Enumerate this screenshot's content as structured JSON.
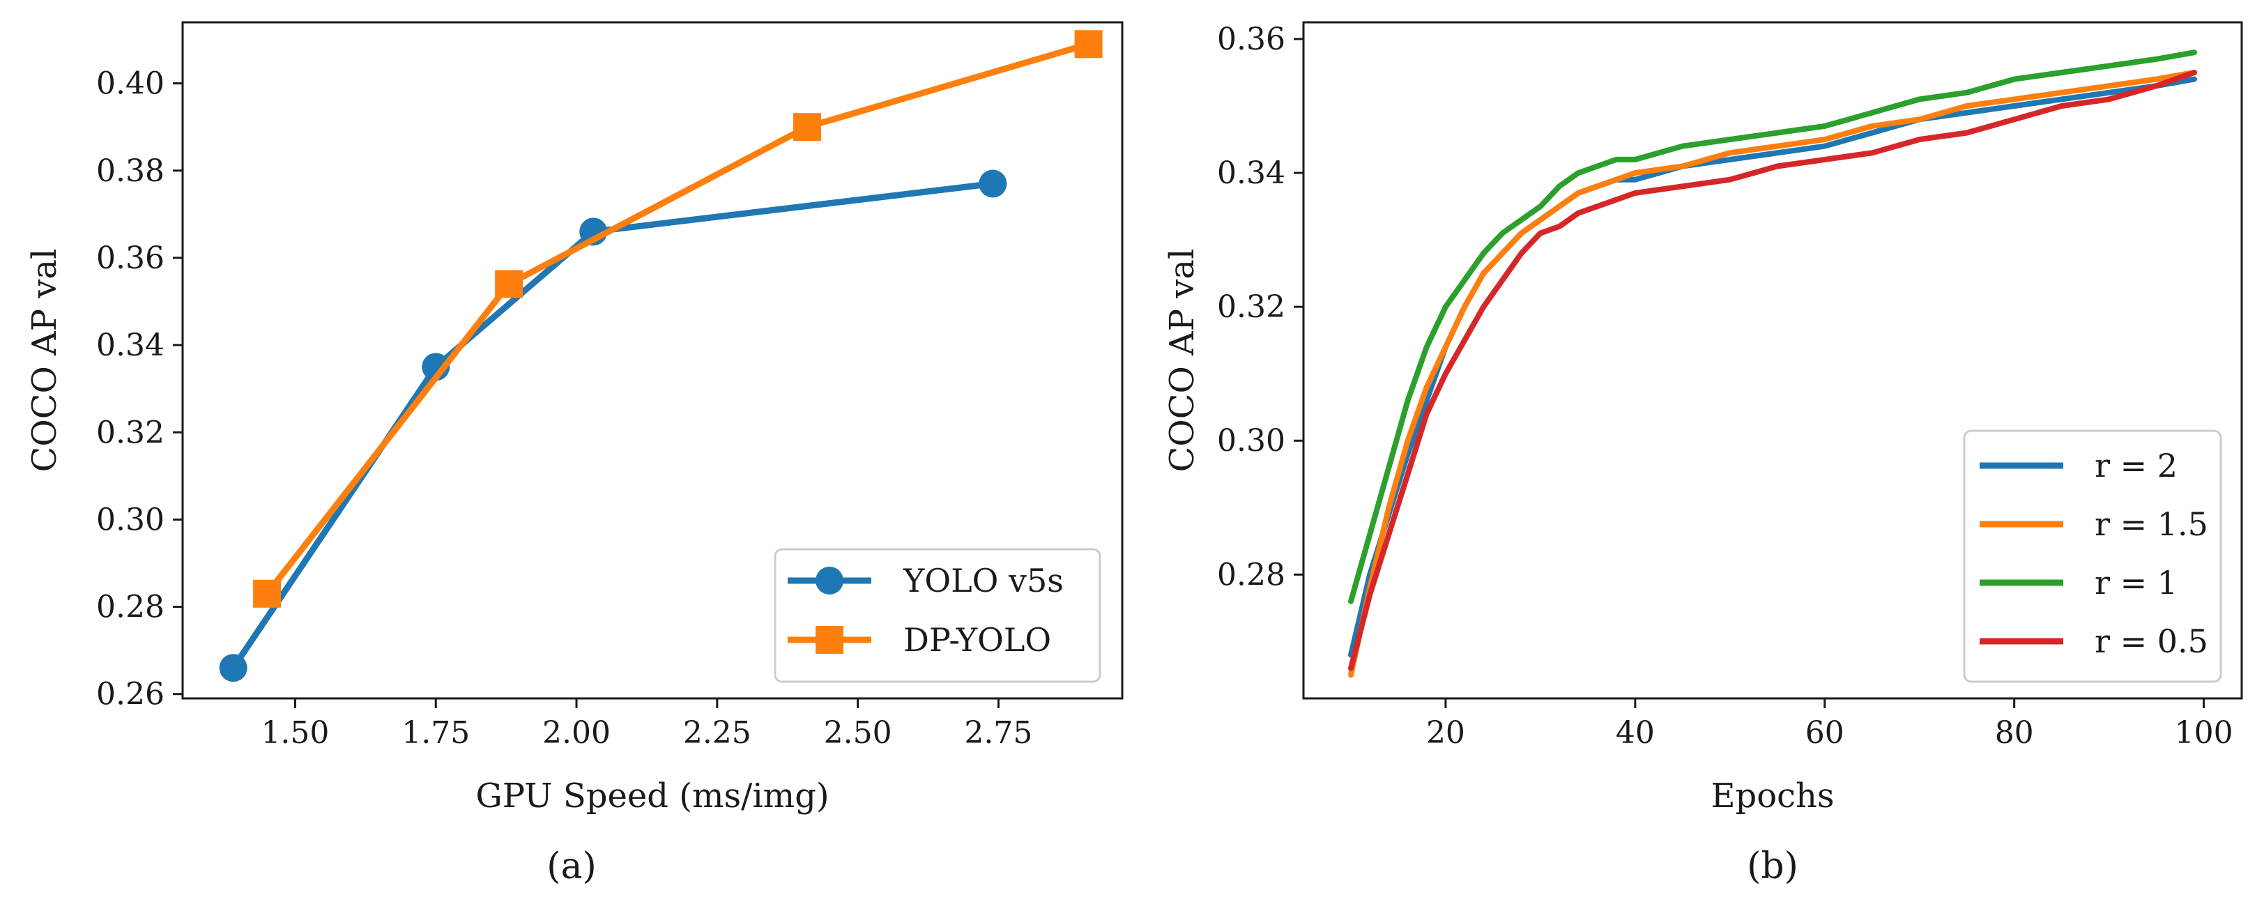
{
  "colors": {
    "blue": "#1f77b4",
    "orange": "#ff7f0e",
    "green": "#2ca02c",
    "red": "#d62728",
    "axis": "#1a1a1a"
  },
  "chart_data": [
    {
      "type": "line",
      "caption": "(a)",
      "title": "",
      "xlabel": "GPU Speed (ms/img)",
      "ylabel": "COCO AP val",
      "xlim": [
        1.3,
        2.97
      ],
      "ylim": [
        0.259,
        0.414
      ],
      "xticks": [
        1.5,
        1.75,
        2.0,
        2.25,
        2.5,
        2.75
      ],
      "xtick_labels": [
        "1.50",
        "1.75",
        "2.00",
        "2.25",
        "2.50",
        "2.75"
      ],
      "yticks": [
        0.26,
        0.28,
        0.3,
        0.32,
        0.34,
        0.36,
        0.38,
        0.4
      ],
      "ytick_labels": [
        "0.26",
        "0.28",
        "0.30",
        "0.32",
        "0.34",
        "0.36",
        "0.38",
        "0.40"
      ],
      "legend_position": "lower-right",
      "series": [
        {
          "name": "YOLO v5s",
          "color": "#1f77b4",
          "marker": "circle",
          "x": [
            1.39,
            1.75,
            2.03,
            2.74
          ],
          "y": [
            0.266,
            0.335,
            0.366,
            0.377
          ]
        },
        {
          "name": "DP-YOLO",
          "color": "#ff7f0e",
          "marker": "square",
          "x": [
            1.45,
            1.88,
            2.41,
            2.91
          ],
          "y": [
            0.283,
            0.354,
            0.39,
            0.409
          ]
        }
      ]
    },
    {
      "type": "line",
      "caption": "(b)",
      "title": "",
      "xlabel": "Epochs",
      "ylabel": "COCO AP val",
      "xlim": [
        5,
        104
      ],
      "ylim": [
        0.2615,
        0.3625
      ],
      "xticks": [
        20,
        40,
        60,
        80,
        100
      ],
      "xtick_labels": [
        "20",
        "40",
        "60",
        "80",
        "100"
      ],
      "yticks": [
        0.28,
        0.3,
        0.32,
        0.34,
        0.36
      ],
      "ytick_labels": [
        "0.28",
        "0.30",
        "0.32",
        "0.34",
        "0.36"
      ],
      "legend_position": "lower-right",
      "series": [
        {
          "name": "r = 2",
          "color": "#1f77b4",
          "x": [
            10,
            12,
            14,
            16,
            18,
            20,
            22,
            24,
            26,
            28,
            30,
            32,
            34,
            36,
            38,
            40,
            45,
            50,
            55,
            60,
            65,
            70,
            75,
            80,
            85,
            90,
            95,
            99
          ],
          "y": [
            0.268,
            0.28,
            0.289,
            0.298,
            0.306,
            0.314,
            0.32,
            0.325,
            0.328,
            0.331,
            0.333,
            0.335,
            0.337,
            0.338,
            0.339,
            0.339,
            0.341,
            0.342,
            0.343,
            0.344,
            0.346,
            0.348,
            0.349,
            0.35,
            0.351,
            0.352,
            0.353,
            0.354
          ]
        },
        {
          "name": "r = 1.5",
          "color": "#ff7f0e",
          "x": [
            10,
            12,
            14,
            16,
            18,
            20,
            22,
            24,
            26,
            28,
            30,
            32,
            34,
            36,
            38,
            40,
            45,
            50,
            55,
            60,
            65,
            70,
            75,
            80,
            85,
            90,
            95,
            99
          ],
          "y": [
            0.265,
            0.278,
            0.29,
            0.3,
            0.308,
            0.314,
            0.32,
            0.325,
            0.328,
            0.331,
            0.333,
            0.335,
            0.337,
            0.338,
            0.339,
            0.34,
            0.341,
            0.343,
            0.344,
            0.345,
            0.347,
            0.348,
            0.35,
            0.351,
            0.352,
            0.353,
            0.354,
            0.355
          ]
        },
        {
          "name": "r = 1",
          "color": "#2ca02c",
          "x": [
            10,
            12,
            14,
            16,
            18,
            20,
            22,
            24,
            26,
            28,
            30,
            32,
            34,
            36,
            38,
            40,
            45,
            50,
            55,
            60,
            65,
            70,
            75,
            80,
            85,
            90,
            95,
            99
          ],
          "y": [
            0.276,
            0.286,
            0.296,
            0.306,
            0.314,
            0.32,
            0.324,
            0.328,
            0.331,
            0.333,
            0.335,
            0.338,
            0.34,
            0.341,
            0.342,
            0.342,
            0.344,
            0.345,
            0.346,
            0.347,
            0.349,
            0.351,
            0.352,
            0.354,
            0.355,
            0.356,
            0.357,
            0.358
          ]
        },
        {
          "name": "r = 0.5",
          "color": "#d62728",
          "x": [
            10,
            12,
            14,
            16,
            18,
            20,
            22,
            24,
            26,
            28,
            30,
            32,
            34,
            36,
            38,
            40,
            45,
            50,
            55,
            60,
            65,
            70,
            75,
            80,
            85,
            90,
            95,
            99
          ],
          "y": [
            0.266,
            0.277,
            0.286,
            0.295,
            0.304,
            0.31,
            0.315,
            0.32,
            0.324,
            0.328,
            0.331,
            0.332,
            0.334,
            0.335,
            0.336,
            0.337,
            0.338,
            0.339,
            0.341,
            0.342,
            0.343,
            0.345,
            0.346,
            0.348,
            0.35,
            0.351,
            0.353,
            0.355
          ]
        }
      ]
    }
  ]
}
